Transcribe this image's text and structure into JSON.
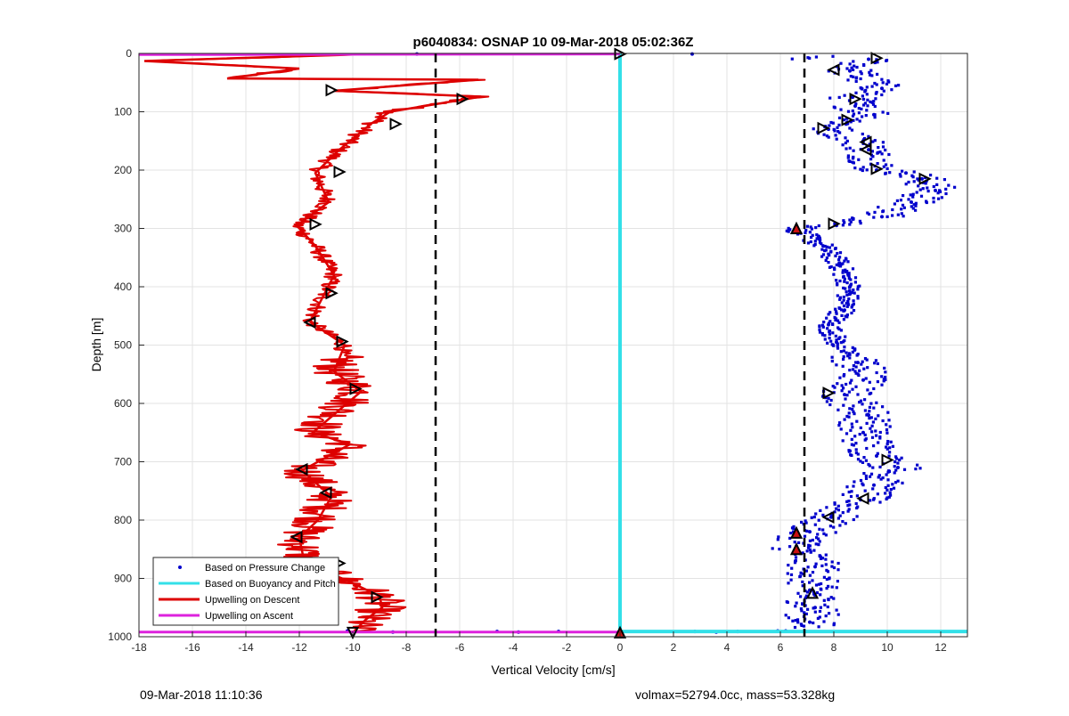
{
  "chart_data": {
    "type": "scatter",
    "title": "p6040834: OSNAP 10 09-Mar-2018 05:02:36Z",
    "xlabel": "Vertical Velocity [cm/s]",
    "ylabel": "Depth [m]",
    "xlim": [
      -18,
      13
    ],
    "ylim": [
      1000,
      0
    ],
    "y_reversed": true,
    "xticks": [
      -18,
      -16,
      -14,
      -12,
      -10,
      -8,
      -6,
      -4,
      -2,
      0,
      2,
      4,
      6,
      8,
      10,
      12
    ],
    "yticks": [
      0,
      100,
      200,
      300,
      400,
      500,
      600,
      700,
      800,
      900,
      1000
    ],
    "grid": true,
    "legend_position": "bottom-left",
    "colors": {
      "pressure": "#0000cc",
      "buoyancy": "#33e0e8",
      "descent": "#dd0000",
      "ascent": "#dd22dd",
      "dashed": "#000000"
    },
    "reference_lines_x": [
      -6.9,
      6.9
    ],
    "series": [
      {
        "name": "Based on Pressure Change",
        "style": "points",
        "points": [
          [
            9.3,
            10
          ],
          [
            8.6,
            30
          ],
          [
            9.8,
            60
          ],
          [
            8.7,
            75
          ],
          [
            8.8,
            90
          ],
          [
            9.5,
            105
          ],
          [
            8.5,
            118
          ],
          [
            7.8,
            130
          ],
          [
            9.1,
            150
          ],
          [
            9.3,
            165
          ],
          [
            9.6,
            200
          ],
          [
            10.7,
            205
          ],
          [
            11.3,
            215
          ],
          [
            11.8,
            235
          ],
          [
            10.9,
            255
          ],
          [
            9.8,
            280
          ],
          [
            8.1,
            295
          ],
          [
            6.6,
            302
          ],
          [
            7.6,
            330
          ],
          [
            8.2,
            360
          ],
          [
            8.6,
            400
          ],
          [
            8.4,
            440
          ],
          [
            7.8,
            465
          ],
          [
            8.1,
            495
          ],
          [
            8.9,
            530
          ],
          [
            9.1,
            560
          ],
          [
            8.4,
            585
          ],
          [
            9.3,
            620
          ],
          [
            9.1,
            650
          ],
          [
            9.6,
            690
          ],
          [
            10.4,
            710
          ],
          [
            9.5,
            740
          ],
          [
            9.0,
            765
          ],
          [
            7.9,
            795
          ],
          [
            7.1,
            820
          ],
          [
            6.6,
            845
          ],
          [
            7.3,
            880
          ],
          [
            7.1,
            920
          ],
          [
            7.3,
            950
          ],
          [
            7.1,
            975
          ],
          [
            6.2,
            990
          ],
          [
            -10.2,
            990
          ],
          [
            -8.5,
            992
          ],
          [
            -4.6,
            991
          ],
          [
            -3.8,
            992
          ],
          [
            -2.3,
            991
          ],
          [
            2.8,
            991
          ],
          [
            3.6,
            992
          ],
          [
            4.4,
            991
          ],
          [
            5.9,
            990
          ],
          [
            -7.6,
            1
          ],
          [
            2.7,
            1
          ]
        ]
      },
      {
        "name": "Based on Buoyancy and Pitch",
        "style": "line",
        "x": [
          0,
          0
        ],
        "y": [
          0,
          990
        ]
      },
      {
        "name": "Upwelling on Descent",
        "style": "line",
        "x": [
          -10.0,
          -17.8,
          -12.0,
          -14.7,
          -5.3,
          -10.7,
          -5.2,
          -8.6,
          -9.3,
          -10.5,
          -11.4,
          -10.9,
          -12.1,
          -11.4,
          -10.7,
          -11.6,
          -10.3,
          -10.7,
          -9.7,
          -11.5,
          -10.1,
          -11.9,
          -10.8,
          -11.3,
          -12.0,
          -11.8,
          -10.4,
          -9.0,
          -8.9,
          -9.5,
          -10.0
        ],
        "y": [
          2,
          13,
          26,
          43,
          45,
          64,
          74,
          100,
          120,
          165,
          205,
          255,
          295,
          330,
          380,
          460,
          500,
          545,
          580,
          650,
          670,
          715,
          760,
          800,
          830,
          875,
          900,
          930,
          950,
          970,
          993
        ]
      },
      {
        "name": "Upwelling on Ascent",
        "style": "line",
        "x": [
          -18,
          0
        ],
        "y": [
          2,
          1
        ]
      }
    ],
    "markers": [
      {
        "x": 9.6,
        "y": 8,
        "shape": "right",
        "filled": false
      },
      {
        "x": 8.0,
        "y": 28,
        "shape": "left",
        "filled": false
      },
      {
        "x": -10.8,
        "y": 63,
        "shape": "right",
        "filled": false
      },
      {
        "x": -5.9,
        "y": 78,
        "shape": "right",
        "filled": false
      },
      {
        "x": 8.8,
        "y": 78,
        "shape": "right",
        "filled": false
      },
      {
        "x": 8.5,
        "y": 114,
        "shape": "right",
        "filled": false
      },
      {
        "x": -8.4,
        "y": 121,
        "shape": "right",
        "filled": false
      },
      {
        "x": 7.6,
        "y": 128,
        "shape": "right",
        "filled": false
      },
      {
        "x": 9.2,
        "y": 152,
        "shape": "left",
        "filled": false
      },
      {
        "x": 9.2,
        "y": 165,
        "shape": "left",
        "filled": false
      },
      {
        "x": 9.6,
        "y": 198,
        "shape": "right",
        "filled": false
      },
      {
        "x": -10.5,
        "y": 203,
        "shape": "right",
        "filled": false
      },
      {
        "x": 11.4,
        "y": 215,
        "shape": "right",
        "filled": false
      },
      {
        "x": -11.4,
        "y": 293,
        "shape": "right",
        "filled": false
      },
      {
        "x": 8.0,
        "y": 292,
        "shape": "right",
        "filled": false
      },
      {
        "x": 6.6,
        "y": 300,
        "shape": "up",
        "filled": true
      },
      {
        "x": -10.8,
        "y": 411,
        "shape": "right",
        "filled": false
      },
      {
        "x": -11.6,
        "y": 461,
        "shape": "left",
        "filled": false
      },
      {
        "x": -10.4,
        "y": 494,
        "shape": "right",
        "filled": false
      },
      {
        "x": -9.9,
        "y": 575,
        "shape": "right",
        "filled": false
      },
      {
        "x": 7.8,
        "y": 582,
        "shape": "right",
        "filled": false
      },
      {
        "x": 10.0,
        "y": 697,
        "shape": "right",
        "filled": false
      },
      {
        "x": -11.9,
        "y": 713,
        "shape": "left",
        "filled": false
      },
      {
        "x": -11.0,
        "y": 753,
        "shape": "left",
        "filled": false
      },
      {
        "x": 9.1,
        "y": 763,
        "shape": "left",
        "filled": false
      },
      {
        "x": 7.8,
        "y": 795,
        "shape": "left",
        "filled": false
      },
      {
        "x": 6.6,
        "y": 822,
        "shape": "up",
        "filled": true
      },
      {
        "x": -12.1,
        "y": 829,
        "shape": "left",
        "filled": false
      },
      {
        "x": 6.6,
        "y": 850,
        "shape": "up",
        "filled": true
      },
      {
        "x": -10.5,
        "y": 874,
        "shape": "right",
        "filled": false
      },
      {
        "x": 7.2,
        "y": 925,
        "shape": "up",
        "filled": false
      },
      {
        "x": -9.1,
        "y": 932,
        "shape": "right",
        "filled": false
      },
      {
        "x": -10.0,
        "y": 993,
        "shape": "down",
        "filled": false
      },
      {
        "x": 0,
        "y": 1,
        "shape": "right",
        "filled": false
      },
      {
        "x": 0,
        "y": 993,
        "shape": "up",
        "filled": true
      }
    ]
  },
  "footer": {
    "left": "09-Mar-2018 11:10:36",
    "right": "volmax=52794.0cc, mass=53.328kg"
  }
}
